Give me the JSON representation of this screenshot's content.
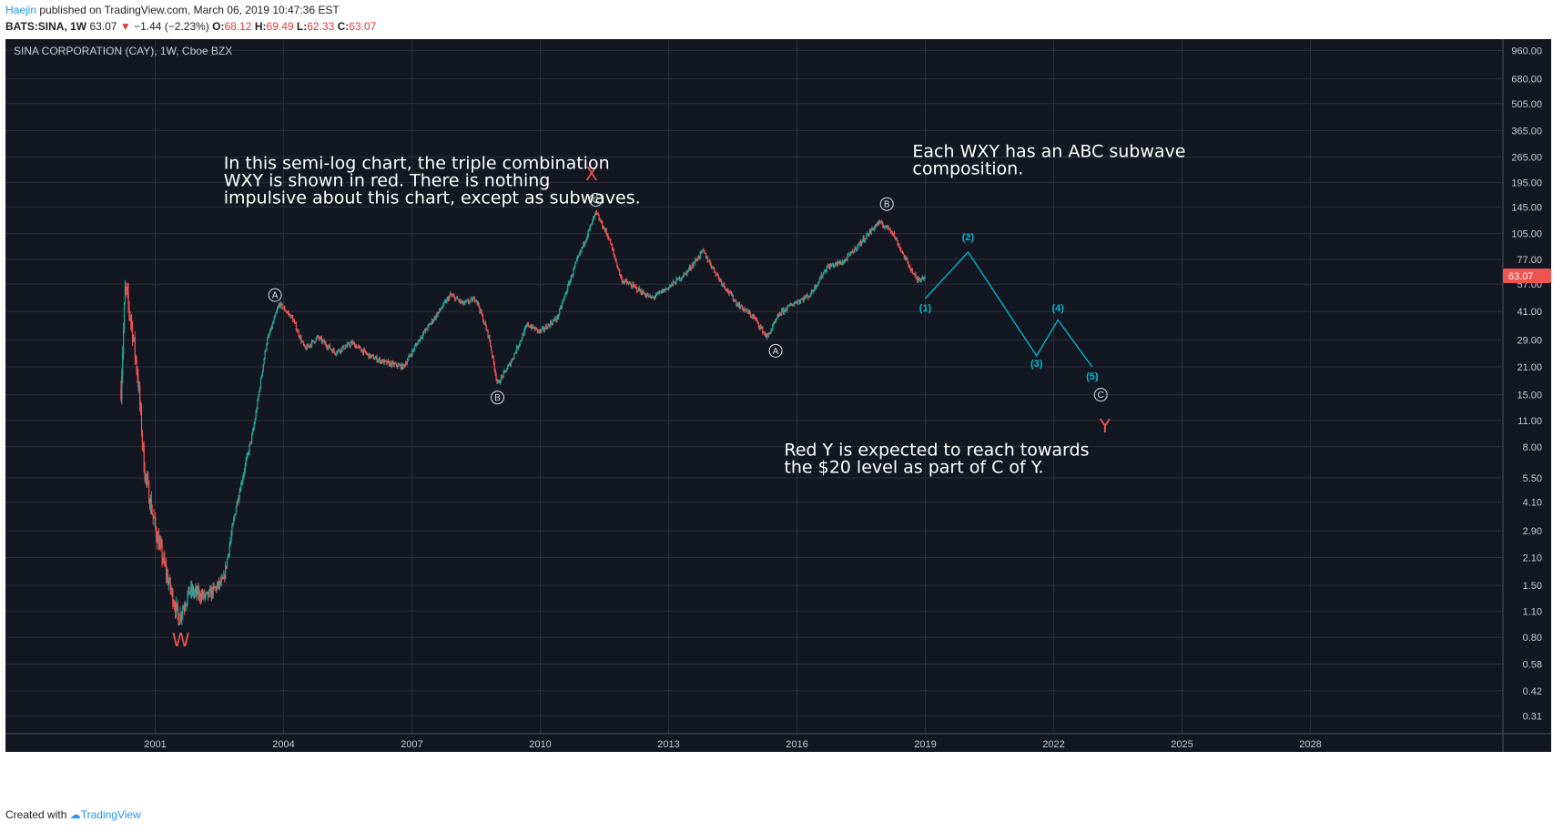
{
  "header": {
    "author": "Haejin",
    "published": "published on TradingView.com, March 06, 2019 10:47:36 EST",
    "symbol": "BATS:SINA, 1W",
    "price": "63.07",
    "change_arrow": "▼",
    "change": "−1.44 (−2.23%)",
    "open_label": "O:",
    "open": "68.12",
    "high_label": "H:",
    "high": "69.49",
    "low_label": "L:",
    "low": "62.33",
    "close_label": "C:",
    "close": "63.07"
  },
  "footer": {
    "created_with": "Created with",
    "brand": "TradingView"
  },
  "colors": {
    "background": "#131722",
    "grid": "#2a2e39",
    "up": "#26a69a",
    "down": "#ef5350",
    "projection": "#00bcd4",
    "wave_label": "#ef5350",
    "price_tag": "#ef5350"
  },
  "chart_data": {
    "type": "candlestick",
    "title": "SINA CORPORATION (CAY), 1W, Cboe BZX",
    "scale": "log",
    "ylim": [
      0.25,
      1100
    ],
    "xlim": [
      1997.5,
      2032.5
    ],
    "x_ticks": [
      "2001",
      "2004",
      "2007",
      "2010",
      "2013",
      "2016",
      "2019",
      "2022",
      "2025",
      "2028"
    ],
    "y_ticks": [
      "960.00",
      "680.00",
      "505.00",
      "365.00",
      "265.00",
      "195.00",
      "145.00",
      "105.00",
      "77.00",
      "57.00",
      "41.00",
      "29.00",
      "21.00",
      "15.00",
      "11.00",
      "8.00",
      "5.50",
      "4.10",
      "2.90",
      "2.10",
      "1.50",
      "1.10",
      "0.80",
      "0.58",
      "0.42",
      "0.31"
    ],
    "last_price_label": "63.07",
    "last_price": 63.07,
    "price_path": [
      [
        2000.2,
        16
      ],
      [
        2000.3,
        55
      ],
      [
        2000.45,
        35
      ],
      [
        2000.6,
        18
      ],
      [
        2000.75,
        6
      ],
      [
        2001.0,
        3
      ],
      [
        2001.3,
        1.6
      ],
      [
        2001.55,
        1.0
      ],
      [
        2001.8,
        1.4
      ],
      [
        2002.2,
        1.3
      ],
      [
        2002.6,
        1.6
      ],
      [
        2002.9,
        4
      ],
      [
        2003.3,
        10
      ],
      [
        2003.6,
        28
      ],
      [
        2003.9,
        45
      ],
      [
        2004.2,
        38
      ],
      [
        2004.5,
        26
      ],
      [
        2004.8,
        30
      ],
      [
        2005.2,
        25
      ],
      [
        2005.6,
        28
      ],
      [
        2006.0,
        24
      ],
      [
        2006.4,
        22
      ],
      [
        2006.8,
        21
      ],
      [
        2007.2,
        30
      ],
      [
        2007.6,
        40
      ],
      [
        2007.9,
        50
      ],
      [
        2008.2,
        45
      ],
      [
        2008.5,
        48
      ],
      [
        2008.8,
        30
      ],
      [
        2009.0,
        17
      ],
      [
        2009.3,
        22
      ],
      [
        2009.7,
        35
      ],
      [
        2010.0,
        32
      ],
      [
        2010.4,
        38
      ],
      [
        2010.8,
        70
      ],
      [
        2011.3,
        135
      ],
      [
        2011.6,
        100
      ],
      [
        2011.9,
        60
      ],
      [
        2012.2,
        55
      ],
      [
        2012.6,
        48
      ],
      [
        2013.0,
        55
      ],
      [
        2013.4,
        65
      ],
      [
        2013.8,
        85
      ],
      [
        2014.2,
        60
      ],
      [
        2014.6,
        45
      ],
      [
        2015.0,
        38
      ],
      [
        2015.3,
        30
      ],
      [
        2015.6,
        40
      ],
      [
        2015.9,
        45
      ],
      [
        2016.3,
        50
      ],
      [
        2016.7,
        70
      ],
      [
        2017.1,
        75
      ],
      [
        2017.5,
        95
      ],
      [
        2017.9,
        120
      ],
      [
        2018.2,
        110
      ],
      [
        2018.5,
        80
      ],
      [
        2018.8,
        60
      ],
      [
        2019.0,
        63
      ]
    ],
    "projection": [
      [
        2019.0,
        48
      ],
      [
        2020.0,
        84
      ],
      [
        2021.6,
        24
      ],
      [
        2022.1,
        37
      ],
      [
        2022.9,
        21
      ]
    ],
    "wave_labels": [
      {
        "text": "W",
        "x": 2001.6,
        "y": 0.72,
        "style": "red"
      },
      {
        "text": "X",
        "x": 2011.2,
        "y": 200,
        "style": "red"
      },
      {
        "text": "Y",
        "x": 2023.2,
        "y": 9.5,
        "style": "red"
      },
      {
        "text": "A",
        "x": 2003.8,
        "y": 50,
        "style": "circle"
      },
      {
        "text": "B",
        "x": 2009.0,
        "y": 14.5,
        "style": "circle"
      },
      {
        "text": "C",
        "x": 2011.3,
        "y": 158,
        "style": "circle"
      },
      {
        "text": "A",
        "x": 2015.5,
        "y": 25.5,
        "style": "circle"
      },
      {
        "text": "B",
        "x": 2018.1,
        "y": 150,
        "style": "circle"
      },
      {
        "text": "C",
        "x": 2023.1,
        "y": 15,
        "style": "circle"
      },
      {
        "text": "(1)",
        "x": 2019.0,
        "y": 41,
        "style": "cyan"
      },
      {
        "text": "(2)",
        "x": 2020.0,
        "y": 97,
        "style": "cyan"
      },
      {
        "text": "(3)",
        "x": 2021.6,
        "y": 21,
        "style": "cyan"
      },
      {
        "text": "(4)",
        "x": 2022.1,
        "y": 41,
        "style": "cyan"
      },
      {
        "text": "(5)",
        "x": 2022.9,
        "y": 18,
        "style": "cyan"
      }
    ],
    "annotations": [
      {
        "lines": [
          "In this semi-log chart, the triple combination",
          "WXY is shown in red. There is nothing",
          "impulsive about this chart, except as subwaves."
        ],
        "x": 2002.6,
        "y": 230
      },
      {
        "lines": [
          "Each WXY has an ABC subwave",
          "composition."
        ],
        "x": 2018.7,
        "y": 265
      },
      {
        "lines": [
          "Red Y is expected to reach towards",
          "the $20 level as part of C of Y."
        ],
        "x": 2015.7,
        "y": 7.2
      }
    ]
  }
}
